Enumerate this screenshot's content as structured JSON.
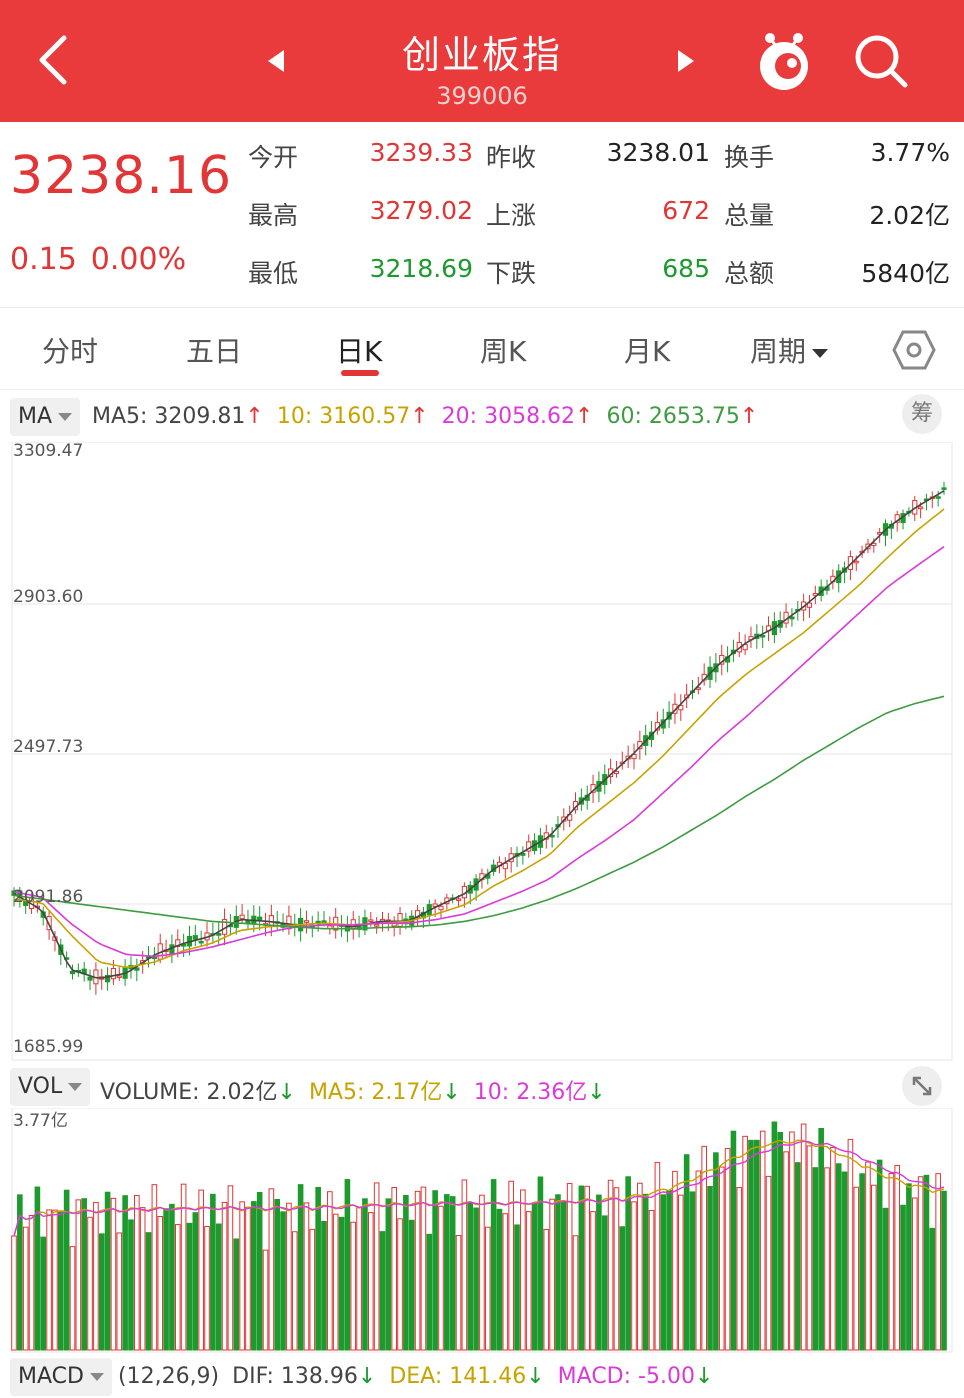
{
  "header": {
    "title": "创业板指",
    "code": "399006",
    "back_icon": "chevron-left-icon",
    "prev_icon": "triangle-left-icon",
    "next_icon": "triangle-right-icon",
    "mascot_icon": "mascot-icon",
    "search_icon": "search-icon",
    "bg_color": "#e93a3c"
  },
  "quote": {
    "price": "3238.16",
    "change": "0.15",
    "change_pct": "0.00%",
    "rows": [
      [
        {
          "label": "今开",
          "value": "3239.33",
          "color": "red"
        },
        {
          "label": "昨收",
          "value": "3238.01",
          "color": "blk"
        },
        {
          "label": "换手",
          "value": "3.77%",
          "color": "blk"
        }
      ],
      [
        {
          "label": "最高",
          "value": "3279.02",
          "color": "red"
        },
        {
          "label": "上涨",
          "value": "672",
          "color": "red"
        },
        {
          "label": "总量",
          "value": "2.02亿",
          "color": "blk"
        }
      ],
      [
        {
          "label": "最低",
          "value": "3218.69",
          "color": "green"
        },
        {
          "label": "下跌",
          "value": "685",
          "color": "green"
        },
        {
          "label": "总额",
          "value": "5840亿",
          "color": "blk"
        }
      ]
    ]
  },
  "tabs": {
    "items": [
      "分时",
      "五日",
      "日K",
      "周K",
      "月K",
      "周期"
    ],
    "active": "日K",
    "settings_icon": "hexagon-settings-icon"
  },
  "ma": {
    "selector": "MA",
    "items": [
      {
        "text": "MA5: 3209.81",
        "color": "#444444"
      },
      {
        "text": "10: 3160.57",
        "color": "#c7a300"
      },
      {
        "text": "20: 3058.62",
        "color": "#d93ad9"
      },
      {
        "text": "60: 2653.75",
        "color": "#3f9b3f"
      }
    ],
    "arrow": "↑",
    "chou_label": "筹"
  },
  "kline": {
    "y_labels": [
      "3309.47",
      "2903.60",
      "2497.73",
      "2091.86",
      "1685.99"
    ],
    "y_max": 3309.47,
    "y_min": 1685.99
  },
  "vol": {
    "selector": "VOL",
    "items": [
      {
        "text": "VOLUME: 2.02亿",
        "color": "#444444"
      },
      {
        "text": "MA5: 2.17亿",
        "color": "#c7a300"
      },
      {
        "text": "10: 2.36亿",
        "color": "#d93ad9"
      }
    ],
    "arrow": "↓",
    "top_label": "3.77亿",
    "expand_icon": "expand-icon"
  },
  "macd": {
    "selector": "MACD",
    "params": "(12,26,9)",
    "items": [
      {
        "text": "DIF: 138.96",
        "color": "#444444"
      },
      {
        "text": "DEA: 141.46",
        "color": "#c7a300"
      },
      {
        "text": "MACD: -5.00",
        "color": "#d93ad9"
      }
    ],
    "arrow": "↓"
  },
  "colors": {
    "up": "#e23535",
    "down": "#1d9a2d",
    "ma5": "#444444",
    "ma10": "#c7a300",
    "ma20": "#d93ad9",
    "ma60": "#3f9b3f"
  },
  "chart_data": {
    "type": "line",
    "series": [
      {
        "name": "MA5",
        "values": [
          2120,
          2075,
          1915,
          1890,
          1905,
          1955,
          1985,
          2005,
          2050,
          2045,
          2035,
          2040,
          2030,
          2045,
          2045,
          2085,
          2120,
          2185,
          2230,
          2275,
          2360,
          2430,
          2500,
          2580,
          2660,
          2740,
          2800,
          2840,
          2895,
          2960,
          3035,
          3110,
          3165,
          3209.81
        ]
      },
      {
        "name": "10",
        "values": [
          2105,
          2095,
          2010,
          1935,
          1920,
          1935,
          1965,
          1985,
          2020,
          2030,
          2035,
          2040,
          2035,
          2040,
          2045,
          2065,
          2090,
          2140,
          2180,
          2225,
          2300,
          2360,
          2420,
          2490,
          2570,
          2650,
          2715,
          2770,
          2825,
          2890,
          2955,
          3030,
          3100,
          3160.57
        ]
      },
      {
        "name": "20",
        "values": [
          2125,
          2110,
          2040,
          1985,
          1955,
          1950,
          1960,
          1975,
          1995,
          2015,
          2030,
          2035,
          2035,
          2040,
          2040,
          2050,
          2065,
          2095,
          2125,
          2160,
          2215,
          2265,
          2320,
          2390,
          2460,
          2535,
          2600,
          2670,
          2740,
          2810,
          2880,
          2950,
          3005,
          3058.62
        ]
      },
      {
        "name": "60",
        "values": [
          2115,
          2105,
          2095,
          2085,
          2075,
          2065,
          2055,
          2045,
          2040,
          2035,
          2030,
          2025,
          2025,
          2028,
          2030,
          2035,
          2045,
          2060,
          2080,
          2105,
          2135,
          2170,
          2205,
          2245,
          2290,
          2335,
          2385,
          2430,
          2480,
          2525,
          2570,
          2610,
          2635,
          2653.75
        ]
      }
    ],
    "xlabel": "",
    "ylabel": "",
    "ylim": [
      1685.99,
      3309.47
    ],
    "grid": true,
    "legend": "top-left"
  }
}
